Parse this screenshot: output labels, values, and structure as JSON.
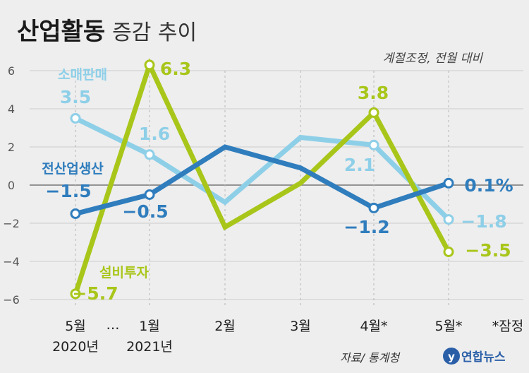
{
  "chart_data": {
    "type": "line",
    "title": "산업활동",
    "subtitle": "증감 추이",
    "note": "계절조정, 전월 대비",
    "categories": [
      "5월",
      "1월",
      "2월",
      "3월",
      "4월*",
      "5월*"
    ],
    "category_years": [
      "2020년",
      "2021년",
      "",
      "",
      "",
      ""
    ],
    "ellipsis": "…",
    "footnote": "*잠정",
    "source": "자료/ 통계청",
    "logo": "연합뉴스",
    "ylim": [
      -6,
      6
    ],
    "yticks": [
      6,
      4,
      2,
      0,
      -2,
      -4,
      -6
    ],
    "yticklabels": [
      "6",
      "4",
      "2",
      "0",
      "−2",
      "−4",
      "−6"
    ],
    "grid": true,
    "series": [
      {
        "name": "소매판매",
        "color": "#8ecfe8",
        "values": [
          3.5,
          1.6,
          -0.9,
          2.5,
          2.1,
          -1.8
        ],
        "labels": [
          "3.5",
          "1.6",
          "",
          "",
          "2.1",
          "−1.8"
        ]
      },
      {
        "name": "설비투자",
        "color": "#a8c61a",
        "values": [
          -5.7,
          6.3,
          -2.2,
          0.1,
          3.8,
          -3.5
        ],
        "labels": [
          "−5.7",
          "6.3",
          "",
          "",
          "3.8",
          "−3.5"
        ]
      },
      {
        "name": "전산업생산",
        "color": "#2f7dbd",
        "values": [
          -1.5,
          -0.5,
          2.0,
          0.9,
          -1.2,
          0.1
        ],
        "labels": [
          "−1.5",
          "−0.5",
          "",
          "",
          "−1.2",
          "0.1%"
        ]
      }
    ]
  }
}
